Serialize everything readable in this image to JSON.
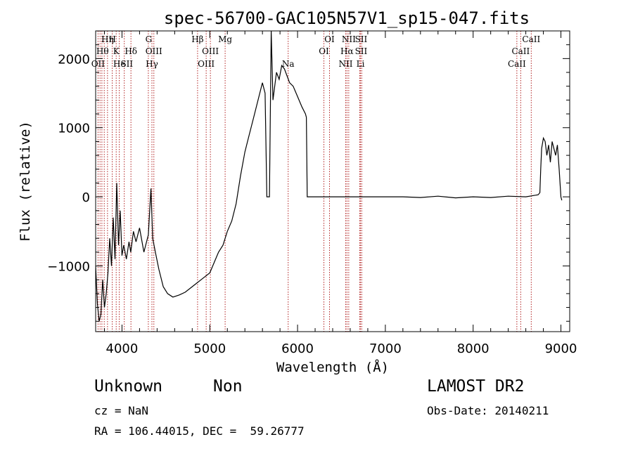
{
  "chart_data": {
    "type": "line",
    "title": "spec-56700-GAC105N57V1_sp15-047.fits",
    "xlabel": "Wavelength (Å)",
    "ylabel": "Flux (relative)",
    "xlim": [
      3700,
      9100
    ],
    "ylim": [
      -1950,
      2400
    ],
    "xticks": [
      4000,
      5000,
      6000,
      7000,
      8000,
      9000
    ],
    "yticks": [
      -1000,
      0,
      1000,
      2000
    ],
    "grid": false,
    "series": [
      {
        "x": [
          3700,
          3720,
          3740,
          3760,
          3780,
          3800,
          3820,
          3840,
          3860,
          3880,
          3900,
          3920,
          3940,
          3960,
          3980,
          4000,
          4020,
          4050,
          4080,
          4100,
          4130,
          4160,
          4200,
          4250,
          4300,
          4330,
          4350,
          4380,
          4420,
          4470,
          4520,
          4580,
          4650,
          4720,
          4800,
          4850,
          4900,
          4950,
          5000,
          5050,
          5100,
          5150,
          5200,
          5250,
          5300,
          5350,
          5400,
          5450,
          5500,
          5550,
          5600,
          5630,
          5650,
          5660,
          5680,
          5700,
          5720,
          5740,
          5760,
          5790,
          5820,
          5850,
          5880,
          5910,
          5950,
          6000,
          6050,
          6090,
          6100,
          6110,
          6130,
          6500,
          7000,
          7200,
          7400,
          7600,
          7800,
          8000,
          8200,
          8400,
          8600,
          8740,
          8760,
          8770,
          8780,
          8800,
          8820,
          8840,
          8860,
          8880,
          8900,
          8920,
          8940,
          8960,
          8980,
          9000,
          9010
        ],
        "y": [
          -1000,
          -1550,
          -1800,
          -1700,
          -1200,
          -1600,
          -1400,
          -1100,
          -600,
          -1000,
          -300,
          -900,
          200,
          -700,
          -200,
          -850,
          -700,
          -900,
          -650,
          -800,
          -500,
          -650,
          -450,
          -800,
          -550,
          120,
          -600,
          -800,
          -1050,
          -1300,
          -1400,
          -1450,
          -1420,
          -1380,
          -1300,
          -1250,
          -1200,
          -1150,
          -1100,
          -950,
          -800,
          -700,
          -500,
          -350,
          -100,
          300,
          650,
          900,
          1150,
          1400,
          1650,
          1500,
          0,
          0,
          0,
          2400,
          1400,
          1600,
          1800,
          1700,
          1900,
          1850,
          1750,
          1650,
          1600,
          1450,
          1300,
          1200,
          1150,
          0,
          0,
          0,
          0,
          0,
          -10,
          10,
          -15,
          0,
          -10,
          10,
          0,
          30,
          60,
          400,
          700,
          850,
          800,
          600,
          750,
          500,
          800,
          700,
          600,
          750,
          400,
          0,
          -50
        ]
      }
    ],
    "line_labels": {
      "row1": [
        {
          "x": 3835,
          "t": "Hη"
        },
        {
          "x": 3890,
          "t": "H"
        },
        {
          "x": 4304,
          "t": "G"
        },
        {
          "x": 4861,
          "t": "Hβ"
        },
        {
          "x": 5175,
          "t": "Mg"
        },
        {
          "x": 6364,
          "t": "OI"
        },
        {
          "x": 6583,
          "t": "NII"
        },
        {
          "x": 6724,
          "t": "SII"
        },
        {
          "x": 8662,
          "t": "CaII"
        }
      ],
      "row2": [
        {
          "x": 3778,
          "t": "Hθ"
        },
        {
          "x": 3934,
          "t": "K"
        },
        {
          "x": 4102,
          "t": "Hδ"
        },
        {
          "x": 4363,
          "t": "OIII"
        },
        {
          "x": 5007,
          "t": "OIII"
        },
        {
          "x": 6300,
          "t": "OI"
        },
        {
          "x": 6563,
          "t": "Hα"
        },
        {
          "x": 6724,
          "t": "SII"
        },
        {
          "x": 8542,
          "t": "CaII"
        }
      ],
      "row3": [
        {
          "x": 3727,
          "t": "OII"
        },
        {
          "x": 3970,
          "t": "He"
        },
        {
          "x": 4055,
          "t": "SII"
        },
        {
          "x": 4341,
          "t": "Hγ"
        },
        {
          "x": 4959,
          "t": "OIII"
        },
        {
          "x": 5893,
          "t": "Na"
        },
        {
          "x": 6548,
          "t": "NII"
        },
        {
          "x": 6717,
          "t": "Li"
        },
        {
          "x": 8498,
          "t": "CaII"
        }
      ]
    },
    "marker_lines": [
      3727,
      3750,
      3771,
      3798,
      3835,
      3889,
      3934,
      3969,
      4026,
      4102,
      4300,
      4341,
      4363,
      4861,
      4959,
      5007,
      5175,
      5893,
      6300,
      6364,
      6548,
      6563,
      6583,
      6708,
      6717,
      6731,
      8498,
      8542,
      8662
    ],
    "colors": {
      "axis": "#000000",
      "series": "#000000",
      "marker_lines": "#b22222",
      "background": "#ffffff"
    }
  },
  "info": {
    "class": "Unknown",
    "subclass": "Non",
    "survey": "LAMOST DR2",
    "cz": "cz = NaN",
    "obs_date": "Obs-Date: 20140211",
    "coords": "RA = 106.44015, DEC =  59.26777"
  }
}
